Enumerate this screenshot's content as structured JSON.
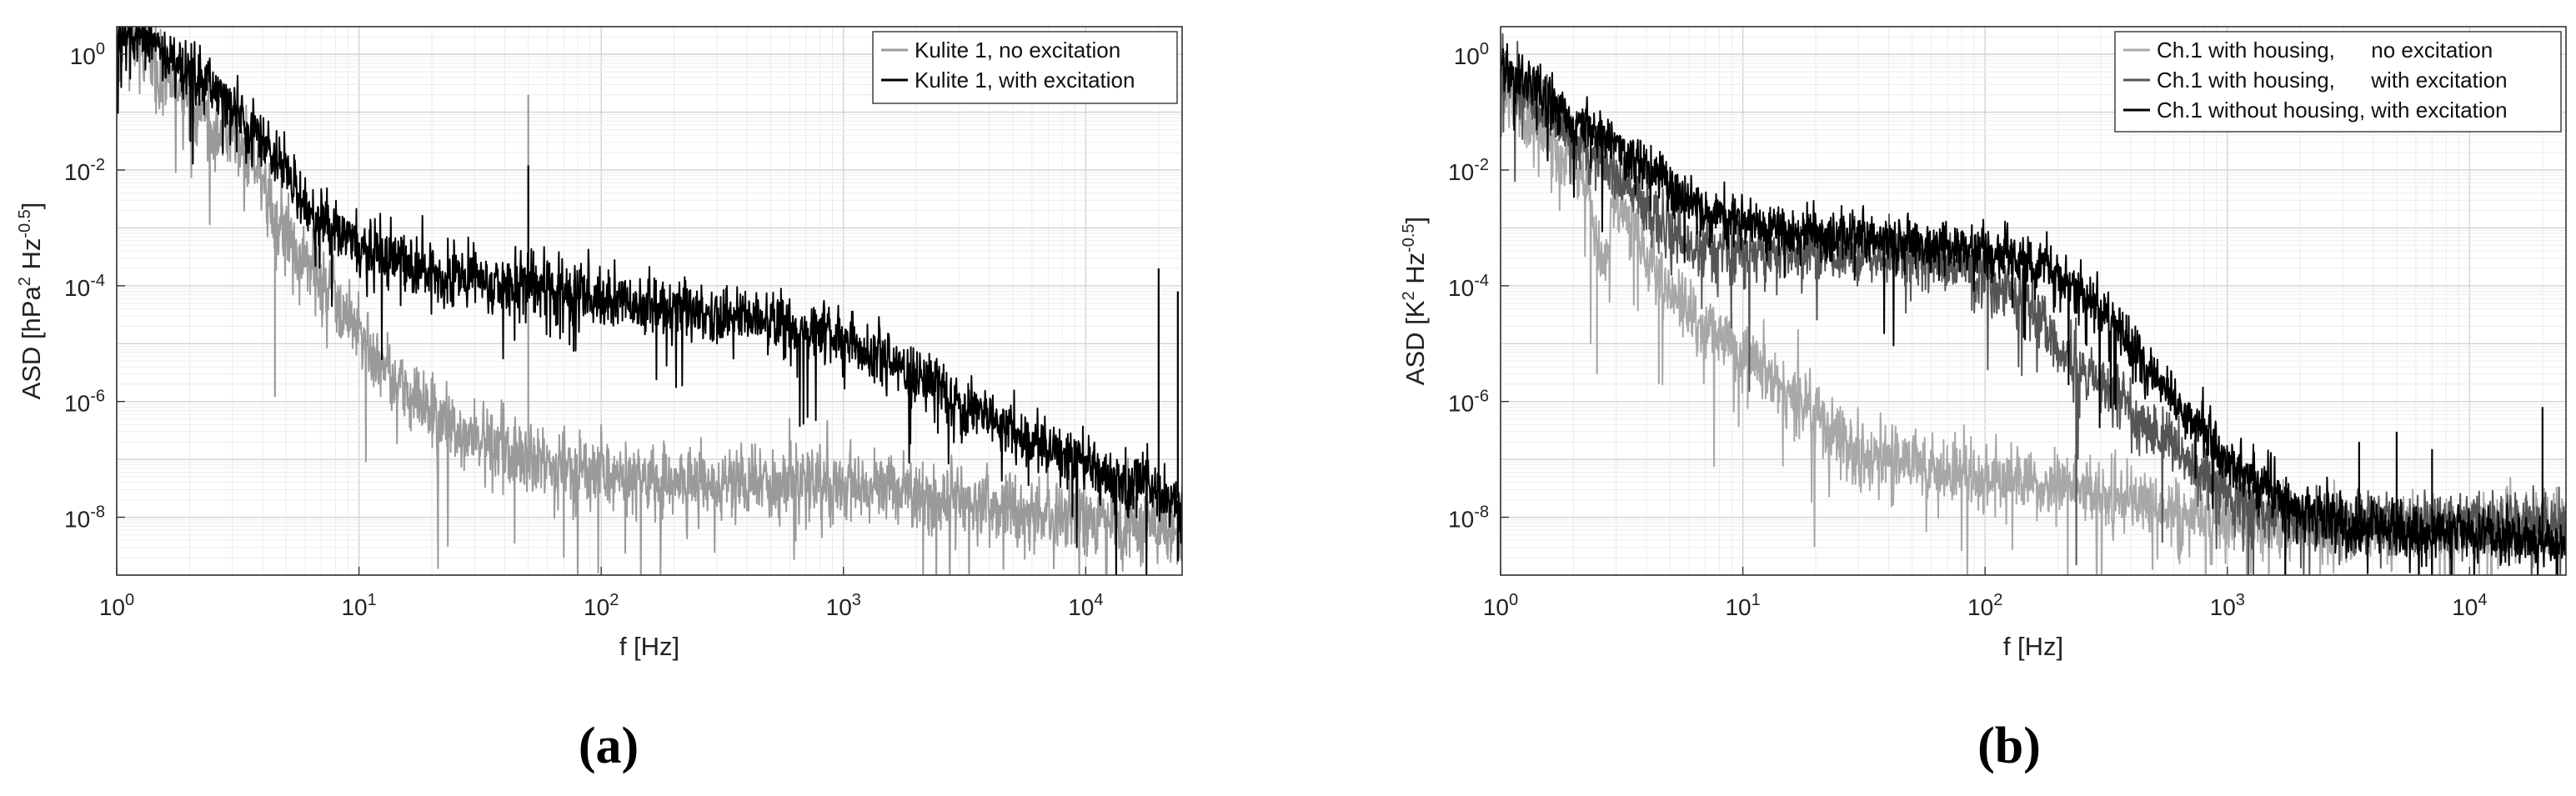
{
  "chart_data": [
    {
      "type": "line",
      "panel_label": "(a)",
      "x_scale": "log",
      "y_scale": "log",
      "xlim": [
        1,
        25000
      ],
      "ylim": [
        1e-09,
        3
      ],
      "xlabel": "f [Hz]",
      "ylabel_main": "ASD [hPa",
      "ylabel_tail": " Hz",
      "ylabel_sup1": "2",
      "ylabel_sup2": "-0.5",
      "ylabel_end": "]",
      "grid": true,
      "legend_position": "top-right",
      "x_ticks": [
        {
          "value": 1,
          "base": "10",
          "exp": "0"
        },
        {
          "value": 10,
          "base": "10",
          "exp": "1"
        },
        {
          "value": 100,
          "base": "10",
          "exp": "2"
        },
        {
          "value": 1000,
          "base": "10",
          "exp": "3"
        },
        {
          "value": 10000,
          "base": "10",
          "exp": "4"
        }
      ],
      "y_ticks": [
        {
          "value": 1,
          "base": "10",
          "exp": "0"
        },
        {
          "value": 0.01,
          "base": "10",
          "exp": "-2"
        },
        {
          "value": 0.0001,
          "base": "10",
          "exp": "-4"
        },
        {
          "value": 1e-06,
          "base": "10",
          "exp": "-6"
        },
        {
          "value": 1e-08,
          "base": "10",
          "exp": "-8"
        }
      ],
      "series": [
        {
          "name": "Kulite 1, no excitation",
          "color": "#9a9a9a",
          "x": [
            1,
            1.1,
            1.2,
            1.4,
            1.7,
            2,
            2.5,
            3,
            3.5,
            4,
            4.5,
            5,
            6,
            7,
            8,
            10,
            12,
            15,
            20,
            30,
            40,
            50,
            60,
            80,
            100,
            150,
            200,
            300,
            500,
            700,
            1000,
            1500,
            2000,
            3000,
            5000,
            7000,
            10000,
            15000,
            20000,
            25000
          ],
          "y": [
            1.3,
            2.5,
            1.7,
            0.9,
            0.3,
            0.15,
            0.07,
            0.04,
            0.018,
            0.006,
            0.0015,
            0.0006,
            0.00025,
            0.00012,
            6e-05,
            1.2e-05,
            5e-06,
            2e-06,
            6e-07,
            2.5e-07,
            1.5e-07,
            1.2e-07,
            9e-08,
            7e-08,
            6e-08,
            5e-08,
            4.5e-08,
            4e-08,
            4e-08,
            4e-08,
            3.5e-08,
            3e-08,
            2.5e-08,
            2e-08,
            1.5e-08,
            1.2e-08,
            1e-08,
            8e-09,
            7e-09,
            6e-09
          ],
          "noise": 0.55,
          "spikes": [
            [
              50,
              0.2
            ],
            [
              4.5,
              1.2e-06
            ],
            [
              20000,
              0.0001
            ]
          ]
        },
        {
          "name": "Kulite 1, with excitation",
          "color": "#000000",
          "x": [
            1,
            1.1,
            1.2,
            1.4,
            1.7,
            2,
            2.5,
            3,
            4,
            5,
            6,
            7,
            8,
            10,
            15,
            20,
            30,
            50,
            70,
            100,
            200,
            300,
            500,
            700,
            1000,
            1500,
            2000,
            3000,
            5000,
            7000,
            10000,
            15000,
            20000,
            25000
          ],
          "y": [
            1.4,
            3.2,
            2.4,
            1.5,
            0.7,
            0.45,
            0.25,
            0.13,
            0.03,
            0.008,
            0.003,
            0.0015,
            0.0009,
            0.0005,
            0.00025,
            0.00018,
            0.00013,
            0.0001,
            8e-05,
            6e-05,
            4e-05,
            3e-05,
            2.5e-05,
            1.8e-05,
            1.2e-05,
            6e-06,
            3e-06,
            1e-06,
            3e-07,
            1.5e-07,
            8e-08,
            4e-08,
            3e-08,
            2e-08
          ],
          "noise": 0.45,
          "spikes": [
            [
              50,
              0.012
            ],
            [
              20000,
              0.0002
            ],
            [
              24000,
              8e-05
            ]
          ]
        }
      ]
    },
    {
      "type": "line",
      "panel_label": "(b)",
      "x_scale": "log",
      "y_scale": "log",
      "xlim": [
        1,
        25000
      ],
      "ylim": [
        1e-09,
        3
      ],
      "xlabel": "f [Hz]",
      "ylabel_main": "ASD [K",
      "ylabel_tail": " Hz",
      "ylabel_sup1": "2",
      "ylabel_sup2": "-0.5",
      "ylabel_end": "]",
      "grid": true,
      "legend_position": "top-right",
      "x_ticks": [
        {
          "value": 1,
          "base": "10",
          "exp": "0"
        },
        {
          "value": 10,
          "base": "10",
          "exp": "1"
        },
        {
          "value": 100,
          "base": "10",
          "exp": "2"
        },
        {
          "value": 1000,
          "base": "10",
          "exp": "3"
        },
        {
          "value": 10000,
          "base": "10",
          "exp": "4"
        }
      ],
      "y_ticks": [
        {
          "value": 1,
          "base": "10",
          "exp": "0"
        },
        {
          "value": 0.01,
          "base": "10",
          "exp": "-2"
        },
        {
          "value": 0.0001,
          "base": "10",
          "exp": "-4"
        },
        {
          "value": 1e-06,
          "base": "10",
          "exp": "-6"
        },
        {
          "value": 1e-08,
          "base": "10",
          "exp": "-8"
        }
      ],
      "series": [
        {
          "name": "Ch.1 with housing,      no excitation",
          "color": "#a8a8a8",
          "x": [
            1,
            1.2,
            1.5,
            1.8,
            2,
            2.3,
            2.6,
            3,
            3.5,
            4,
            5,
            6,
            8,
            10,
            15,
            20,
            30,
            50,
            70,
            100,
            150,
            200,
            300,
            500,
            700,
            1000,
            1500
          ],
          "y": [
            0.3,
            0.12,
            0.04,
            0.02,
            0.012,
            0.005,
            0.0002,
            0.003,
            0.0015,
            0.0003,
            8e-05,
            3e-05,
            1.2e-05,
            6e-06,
            2e-06,
            7e-07,
            1.5e-07,
            8e-08,
            6e-08,
            5e-08,
            4e-08,
            3.5e-08,
            2.5e-08,
            1.5e-08,
            1e-08,
            8e-09,
            7e-09
          ],
          "noise": 0.5,
          "spikes": [
            [
              4.5,
              2e-06
            ],
            [
              2.5,
              3e-06
            ]
          ]
        },
        {
          "name": "Ch.1 with housing,      with excitation",
          "color": "#555555",
          "x": [
            1,
            1.2,
            1.5,
            2,
            2.5,
            3,
            4,
            5,
            6,
            8,
            10,
            15,
            20,
            30,
            50,
            70,
            100,
            150,
            200,
            300,
            500,
            700,
            1000,
            1500,
            2000
          ],
          "y": [
            0.5,
            0.25,
            0.1,
            0.04,
            0.015,
            0.008,
            0.002,
            0.0008,
            0.0005,
            0.0004,
            0.0004,
            0.0004,
            0.0004,
            0.00035,
            0.0003,
            0.00025,
            0.00015,
            5e-05,
            1e-05,
            2e-06,
            3e-07,
            8e-08,
            2.5e-08,
            1.2e-08,
            8e-09
          ],
          "noise": 0.45,
          "spikes": []
        },
        {
          "name": "Ch.1 without housing, with excitation",
          "color": "#000000",
          "x": [
            1,
            1.2,
            1.5,
            2,
            3,
            4,
            5,
            6,
            8,
            10,
            15,
            20,
            30,
            50,
            70,
            100,
            150,
            200,
            300,
            500,
            700,
            1000,
            1500,
            2000,
            3000,
            5000,
            10000,
            20000,
            25000
          ],
          "y": [
            0.6,
            0.4,
            0.2,
            0.08,
            0.03,
            0.012,
            0.005,
            0.003,
            0.0015,
            0.0012,
            0.0009,
            0.0008,
            0.0007,
            0.0006,
            0.0005,
            0.0004,
            0.00025,
            0.00015,
            4e-05,
            3e-06,
            5e-07,
            1e-07,
            3e-08,
            1.5e-08,
            8e-09,
            6e-09,
            5e-09,
            4e-09,
            4e-09
          ],
          "noise": 0.4,
          "spikes": [
            [
              3500,
              2e-07
            ],
            [
              5000,
              3e-07
            ],
            [
              20000,
              8e-07
            ],
            [
              7000,
              1.5e-07
            ]
          ]
        }
      ]
    }
  ]
}
